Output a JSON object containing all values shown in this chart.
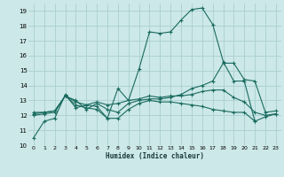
{
  "background_color": "#cce8e8",
  "grid_color": "#aacece",
  "line_color": "#1a6b60",
  "xlabel": "Humidex (Indice chaleur)",
  "xlim": [
    -0.5,
    23.5
  ],
  "ylim": [
    10,
    19.5
  ],
  "yticks": [
    10,
    11,
    12,
    13,
    14,
    15,
    16,
    17,
    18,
    19
  ],
  "xticks": [
    0,
    1,
    2,
    3,
    4,
    5,
    6,
    7,
    8,
    9,
    10,
    11,
    12,
    13,
    14,
    15,
    16,
    17,
    18,
    19,
    20,
    21,
    22,
    23
  ],
  "series": [
    {
      "x": [
        0,
        1,
        2,
        3,
        4,
        5,
        6,
        7,
        8,
        9,
        10,
        11,
        12,
        13,
        14,
        15,
        16,
        17,
        18,
        19,
        20,
        21,
        22
      ],
      "y": [
        10.5,
        11.6,
        11.8,
        13.4,
        12.5,
        12.7,
        12.6,
        11.8,
        13.8,
        13.0,
        15.1,
        17.6,
        17.5,
        17.6,
        18.4,
        19.1,
        19.2,
        18.1,
        15.6,
        14.3,
        14.3,
        11.6,
        null
      ]
    },
    {
      "x": [
        0,
        1,
        2,
        3,
        4,
        5,
        6,
        7,
        8,
        9,
        10,
        11,
        12,
        13,
        14,
        15,
        16,
        17,
        18,
        19,
        20,
        21,
        22,
        23
      ],
      "y": [
        12.0,
        12.1,
        12.2,
        13.3,
        13.0,
        12.4,
        12.8,
        12.4,
        12.2,
        12.8,
        13.0,
        13.1,
        13.1,
        13.2,
        13.4,
        13.8,
        14.0,
        14.3,
        15.5,
        15.5,
        14.4,
        14.3,
        12.2,
        12.3
      ]
    },
    {
      "x": [
        0,
        1,
        2,
        3,
        4,
        5,
        6,
        7,
        8,
        9,
        10,
        11,
        12,
        13,
        14,
        15,
        16,
        17,
        18,
        19,
        20,
        21,
        22,
        23
      ],
      "y": [
        12.1,
        12.2,
        12.3,
        13.3,
        12.9,
        12.7,
        12.9,
        12.7,
        12.8,
        13.0,
        13.1,
        13.3,
        13.2,
        13.3,
        13.3,
        13.4,
        13.6,
        13.7,
        13.7,
        13.2,
        12.9,
        12.2,
        12.0,
        12.1
      ]
    },
    {
      "x": [
        0,
        1,
        2,
        3,
        4,
        5,
        6,
        7,
        8,
        9,
        10,
        11,
        12,
        13,
        14,
        15,
        16,
        17,
        18,
        19,
        20,
        21,
        22,
        23
      ],
      "y": [
        12.2,
        12.2,
        12.3,
        13.3,
        12.7,
        12.5,
        12.4,
        11.8,
        11.8,
        12.4,
        12.8,
        13.0,
        12.9,
        12.9,
        12.8,
        12.7,
        12.6,
        12.4,
        12.3,
        12.2,
        12.2,
        11.6,
        11.9,
        12.1
      ]
    }
  ]
}
